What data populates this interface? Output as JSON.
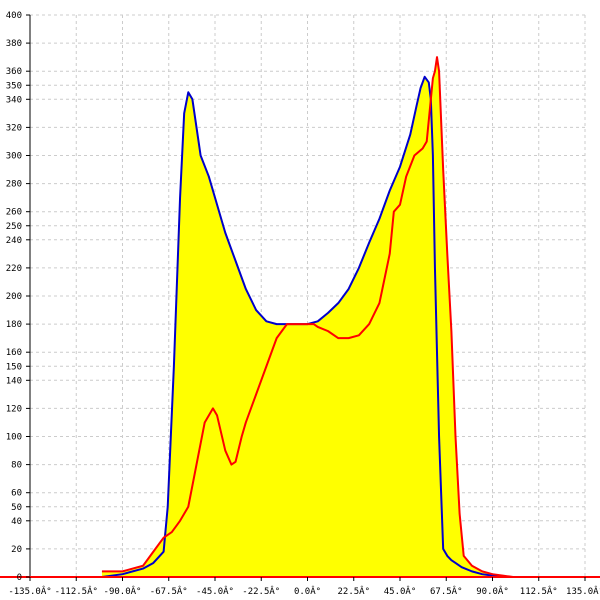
{
  "chart_data": {
    "type": "area",
    "title": "",
    "xlabel": "",
    "ylabel": "",
    "xlim": [
      -135,
      135
    ],
    "ylim": [
      0,
      400
    ],
    "grid": true,
    "x_ticks": [
      -135,
      -112.5,
      -90,
      -67.5,
      -45,
      -22.5,
      0,
      22.5,
      45,
      67.5,
      90,
      112.5,
      135
    ],
    "x_tick_labels": [
      "-135.0Â°",
      "-112.5Â°",
      "-90.0Â°",
      "-67.5Â°",
      "-45.0Â°",
      "-22.5Â°",
      "0.0Â°",
      "22.5Â°",
      "45.0Â°",
      "67.5Â°",
      "90.0Â°",
      "112.5Â°",
      "135.0Â°"
    ],
    "y_ticks": [
      0,
      20,
      40,
      50,
      60,
      80,
      100,
      120,
      140,
      150,
      160,
      180,
      200,
      220,
      240,
      250,
      260,
      280,
      300,
      320,
      340,
      350,
      360,
      380,
      400
    ],
    "y_tick_labels": [
      "0",
      "20",
      "40",
      "50",
      "60",
      "80",
      "100",
      "120",
      "140",
      "150",
      "160",
      "180",
      "200",
      "220",
      "240",
      "250",
      "260",
      "280",
      "300",
      "320",
      "340",
      "350",
      "360",
      "380",
      "400"
    ],
    "colors": {
      "fill": "#ffff00",
      "series_blue": "#0000cc",
      "series_red": "#ff0000",
      "axis": "#ff0000",
      "grid": "#cccccc"
    },
    "series": [
      {
        "x": [
          -100,
          -90,
          -80,
          -75,
          -70,
          -68,
          -65,
          -62,
          -60,
          -58,
          -56,
          -52,
          -48,
          -45,
          -40,
          -35,
          -30,
          -25,
          -20,
          -15,
          -10,
          -5,
          0,
          5,
          10,
          15,
          20,
          25,
          30,
          35,
          40,
          45,
          50,
          53,
          55,
          57,
          59,
          60,
          61,
          62,
          64,
          66,
          68,
          70,
          72,
          75,
          80,
          85,
          90,
          95,
          100
        ],
        "y": [
          0,
          2,
          6,
          10,
          18,
          50,
          150,
          270,
          330,
          345,
          340,
          300,
          285,
          270,
          245,
          225,
          205,
          190,
          182,
          180,
          180,
          180,
          180,
          182,
          188,
          195,
          205,
          220,
          238,
          255,
          275,
          292,
          315,
          335,
          348,
          356,
          352,
          340,
          300,
          220,
          100,
          20,
          15,
          12,
          10,
          7,
          4,
          2,
          1,
          0,
          0
        ]
      },
      {
        "x": [
          -100,
          -90,
          -80,
          -78,
          -74,
          -70,
          -66,
          -62,
          -58,
          -54,
          -50,
          -46,
          -44,
          -40,
          -37,
          -35,
          -32,
          -30,
          -25,
          -20,
          -15,
          -10,
          -5,
          0,
          3,
          5,
          10,
          15,
          20,
          25,
          30,
          35,
          40,
          42,
          45,
          48,
          52,
          56,
          58,
          60,
          61,
          62,
          63,
          64,
          66,
          68,
          70,
          72,
          74,
          76,
          80,
          85,
          90,
          95,
          100
        ],
        "y": [
          4,
          4,
          8,
          12,
          20,
          28,
          32,
          40,
          50,
          80,
          110,
          120,
          115,
          90,
          80,
          82,
          100,
          110,
          130,
          150,
          170,
          180,
          180,
          180,
          180,
          178,
          175,
          170,
          170,
          172,
          180,
          195,
          230,
          260,
          265,
          285,
          300,
          305,
          310,
          340,
          355,
          360,
          370,
          360,
          290,
          230,
          175,
          100,
          45,
          15,
          8,
          4,
          2,
          1,
          0
        ]
      }
    ]
  }
}
